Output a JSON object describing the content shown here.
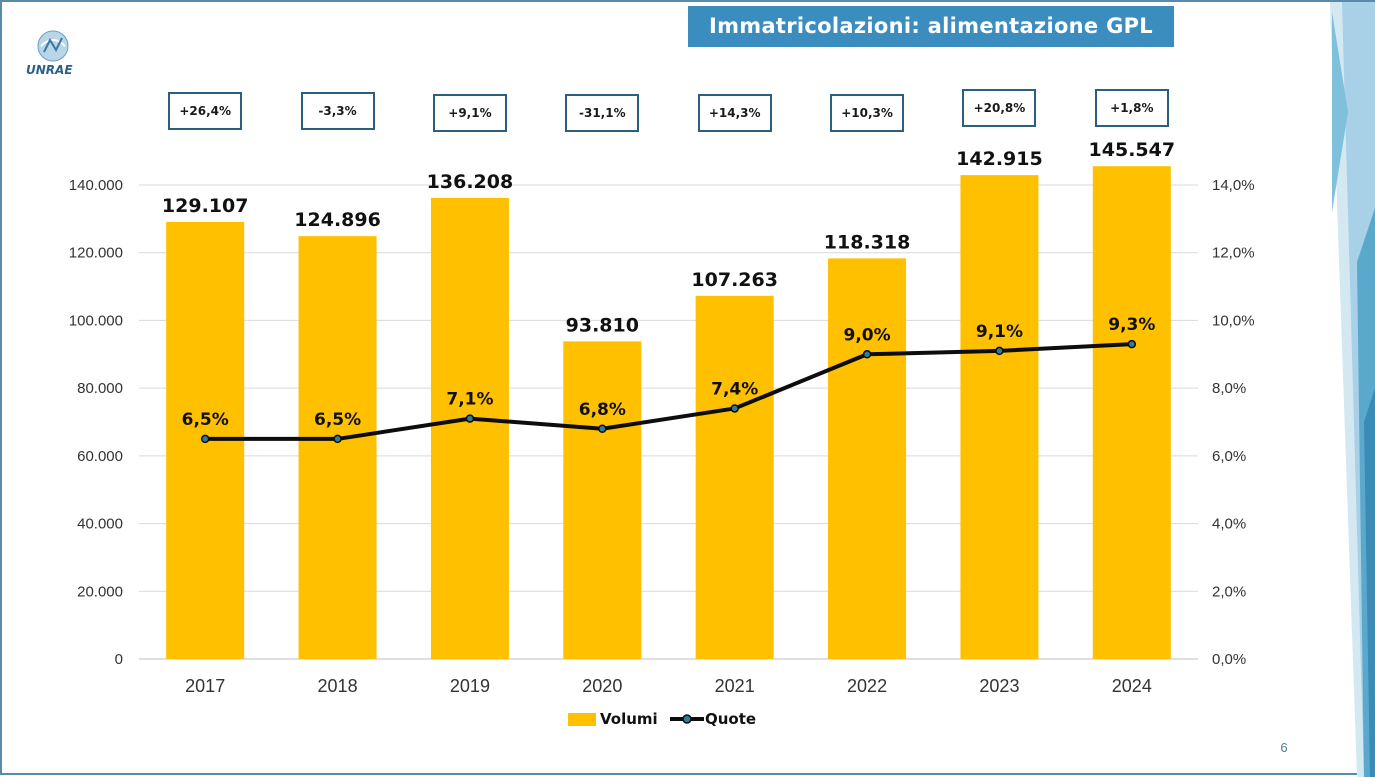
{
  "slide": {
    "title": "Immatricolazioni: alimentazione GPL",
    "logo_text": "UNRAE",
    "page_number": "6",
    "colors": {
      "title_bg": "#3b8dc0",
      "bar": "#ffc000",
      "line": "#0d0d0d",
      "marker": "#2e7d9e",
      "box_border": "#2b5f7e"
    }
  },
  "chart_data": {
    "type": "bar",
    "title": "",
    "xlabel": "",
    "ylabel": "",
    "categories": [
      "2017",
      "2018",
      "2019",
      "2020",
      "2021",
      "2022",
      "2023",
      "2024"
    ],
    "series": [
      {
        "name": "Volumi",
        "type": "bar",
        "axis": "left",
        "values": [
          129107,
          124896,
          136208,
          93810,
          107263,
          118318,
          142915,
          145547
        ],
        "labels": [
          "129.107",
          "124.896",
          "136.208",
          "93.810",
          "107.263",
          "118.318",
          "142.915",
          "145.547"
        ]
      },
      {
        "name": "Quote",
        "type": "line",
        "axis": "right",
        "values": [
          6.5,
          6.5,
          7.1,
          6.8,
          7.4,
          9.0,
          9.1,
          9.3
        ],
        "labels": [
          "6,5%",
          "6,5%",
          "7,1%",
          "6,8%",
          "7,4%",
          "9,0%",
          "9,1%",
          "9,3%"
        ]
      }
    ],
    "yoy_changes": [
      "+26,4%",
      "-3,3%",
      "+9,1%",
      "-31,1%",
      "+14,3%",
      "+10,3%",
      "+20,8%",
      "+1,8%"
    ],
    "ylim_left": [
      0,
      140000
    ],
    "ylim_right": [
      0,
      14
    ],
    "left_ticks": [
      "0",
      "20.000",
      "40.000",
      "60.000",
      "80.000",
      "100.000",
      "120.000",
      "140.000"
    ],
    "right_ticks": [
      "0,0%",
      "2,0%",
      "4,0%",
      "6,0%",
      "8,0%",
      "10,0%",
      "12,0%",
      "14,0%"
    ],
    "grid": true,
    "legend": "bottom"
  }
}
